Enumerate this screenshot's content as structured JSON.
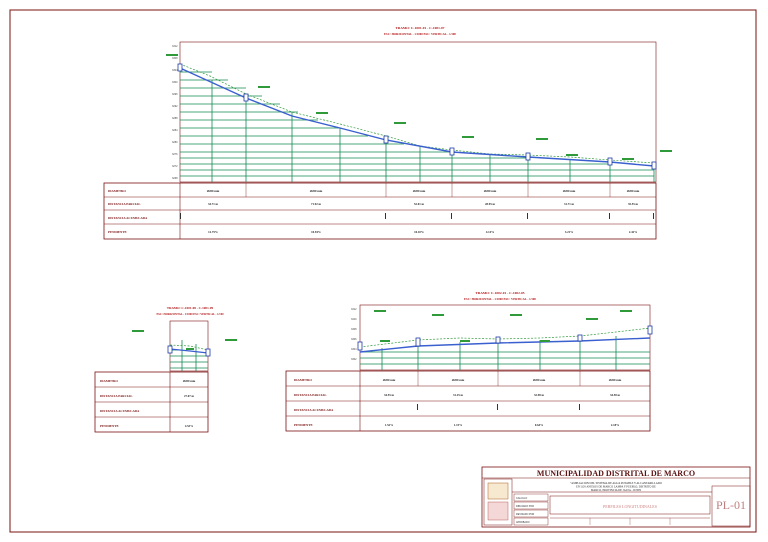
{
  "sheet": {
    "municipality": "MUNICIPALIDAD DISTRITAL DE MARCO",
    "project_lines": [
      "\"AMPLIACION DEL SISTEMA DE AGUA POTABLE Y ALCANTARILLADO",
      "EN LOS ANEXOS DE MARCO LAMPA Y PUEBLO, DISTRITO DE",
      "MARCO, PROVINCIA DE JAUJA - JUNIN"
    ],
    "plan_title": "PERFILES LONGITUDINALES",
    "plan_number": "PL-01",
    "side_labels": [
      "CALCULO",
      "DIBUJADO POR",
      "REVISADO POR",
      "APROBADO"
    ]
  },
  "row_labels": {
    "diameter": "DIAMETRO",
    "distance": "DISTANCIA PARCIAL",
    "dist_acc": "DISTANCIA ACUMULADA",
    "slope": "PENDIENTE"
  },
  "profiles": [
    {
      "title1": "TRAMO: C-1001-01 - C-1001-07",
      "title2": "ESC: HORIZONTAL - 1/1000      ESC: VERTICAL - 1/100",
      "diameters": [
        "Ø200 mm",
        "Ø200 mm",
        "Ø200 mm",
        "Ø200 mm",
        "Ø200 mm",
        "Ø200 mm"
      ],
      "distances": [
        "34.71 m",
        "71.92 m",
        "52.01 m",
        "28.95 m",
        "31.71 m",
        "35.55 m"
      ],
      "slopes": [
        "12.75%",
        "10.94%",
        "10.10%",
        "4.14%",
        "3.21%",
        "2.42%"
      ]
    },
    {
      "title1": "TRAMO: C-1001-08 - C-1001-09",
      "title2": "ESC: HORIZONTAL - 1/1000      ESC: VERTICAL - 1/100",
      "diameters": [
        "Ø200 mm"
      ],
      "distances": [
        "27.07 m"
      ],
      "slopes": [
        "4.53%"
      ]
    },
    {
      "title1": "TRAMO: C-1002-01 - C-1002-05",
      "title2": "ESC: HORIZONTAL - 1/1000      ESC: VERTICAL - 1/100",
      "diameters": [
        "Ø200 mm",
        "Ø200 mm",
        "Ø200 mm",
        "Ø200 mm"
      ],
      "distances": [
        "34.55 m",
        "31.25 m",
        "32.98 m",
        "34.58 m"
      ],
      "slopes": [
        "1.52%",
        "1.15%",
        "0.64%",
        "2.18%"
      ]
    }
  ],
  "colors": {
    "frame": "#7a1010",
    "grid": "#138a52",
    "pipe": "#3a5fcf",
    "terrain": "#2e9a3a",
    "hatch": "#7a7a7a"
  }
}
